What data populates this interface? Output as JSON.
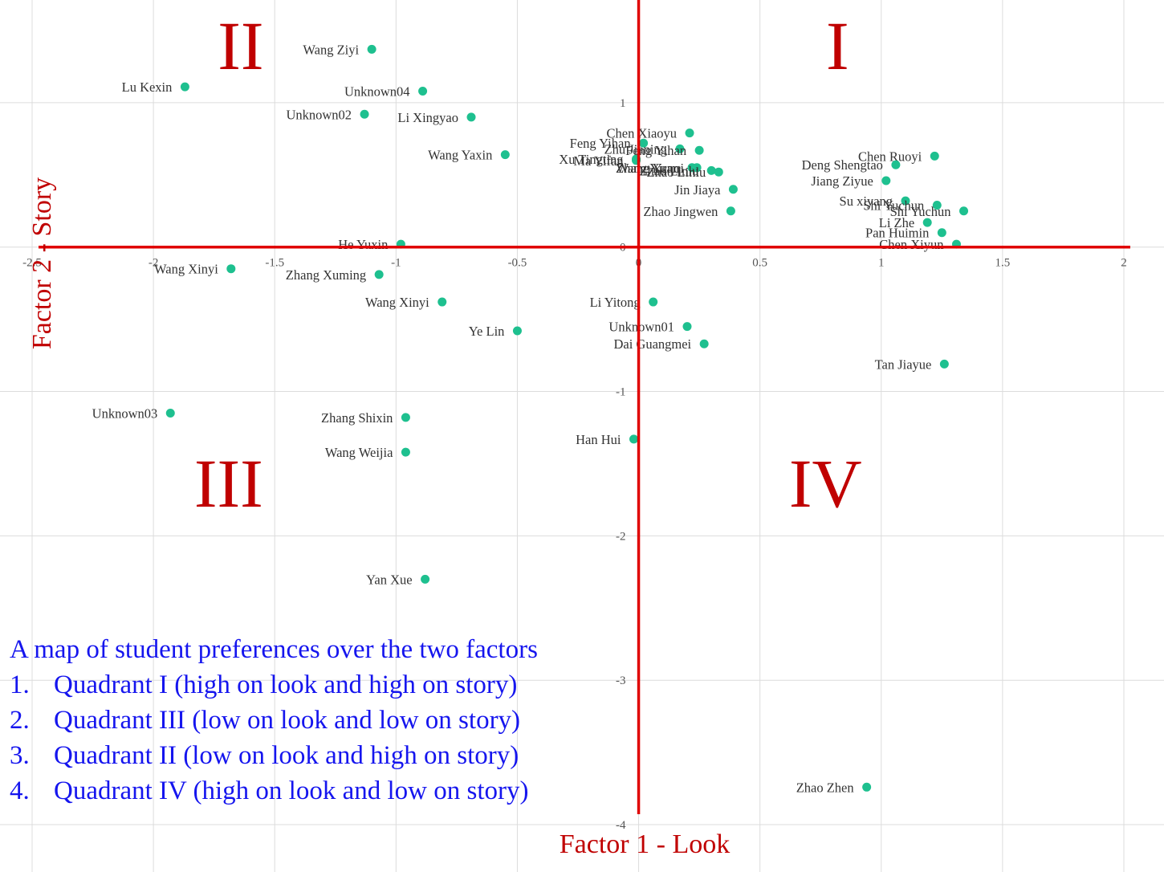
{
  "chart_data": {
    "type": "scatter",
    "title": "",
    "xlabel": "Factor 1 - Look",
    "ylabel": "Factor 2 - Story",
    "xlim": [
      -2.5,
      2.0
    ],
    "ylim": [
      -4.35,
      1.75
    ],
    "grid": true,
    "x_ticks": [
      -2.5,
      -2,
      -1.5,
      -1,
      -0.5,
      0,
      0.5,
      1,
      1.5,
      2
    ],
    "x_tick_labels": [
      "-2.5",
      "-2",
      "-1.5",
      "-1",
      "-0.5",
      "0",
      "0.5",
      "1",
      "1.5",
      "2"
    ],
    "y_ticks": [
      1,
      0,
      -1,
      -2,
      -3,
      -4
    ],
    "y_tick_labels": [
      "1",
      "0",
      "-1",
      "-2",
      "-3",
      "-4"
    ],
    "point_color": "#1ec08f",
    "axis_color": "#e00000",
    "quadrant_labels": [
      {
        "text": "I",
        "x": 0.82,
        "y": 1.4
      },
      {
        "text": "II",
        "x": -1.64,
        "y": 1.4
      },
      {
        "text": "III",
        "x": -1.69,
        "y": -1.63
      },
      {
        "text": "IV",
        "x": 0.77,
        "y": -1.63
      }
    ],
    "points": [
      {
        "name": "Wang Ziyi",
        "x": -1.1,
        "y": 1.37
      },
      {
        "name": "Lu Kexin",
        "x": -1.87,
        "y": 1.11
      },
      {
        "name": "Unknown04",
        "x": -0.89,
        "y": 1.08
      },
      {
        "name": "Unknown02",
        "x": -1.13,
        "y": 0.92
      },
      {
        "name": "Li Xingyao",
        "x": -0.69,
        "y": 0.9
      },
      {
        "name": "Wang Yaxin",
        "x": -0.55,
        "y": 0.64
      },
      {
        "name": "Feng Yihan",
        "x": 0.02,
        "y": 0.72
      },
      {
        "name": "Chen Xiaoyu",
        "x": 0.21,
        "y": 0.79
      },
      {
        "name": "Xu Tingting",
        "x": -0.01,
        "y": 0.61
      },
      {
        "name": "Zhu Jianing",
        "x": 0.17,
        "y": 0.68
      },
      {
        "name": "Feng Yihan",
        "x": 0.25,
        "y": 0.67
      },
      {
        "name": "Ma Yifan",
        "x": -0.01,
        "y": 0.6
      },
      {
        "name": "Wang Yiran",
        "x": 0.22,
        "y": 0.55
      },
      {
        "name": "Zhang Yunqi",
        "x": 0.24,
        "y": 0.55
      },
      {
        "name": "Zhao Linlu",
        "x": 0.3,
        "y": 0.53
      },
      {
        "name": "Zhao Linlu",
        "x": 0.33,
        "y": 0.52
      },
      {
        "name": "Jin Jiaya",
        "x": 0.39,
        "y": 0.4
      },
      {
        "name": "Zhao Jingwen",
        "x": 0.38,
        "y": 0.25
      },
      {
        "name": "Chen Ruoyi",
        "x": 1.22,
        "y": 0.63
      },
      {
        "name": "Deng Shengtao",
        "x": 1.06,
        "y": 0.57
      },
      {
        "name": "Jiang Ziyue",
        "x": 1.02,
        "y": 0.46
      },
      {
        "name": "Su xiyang",
        "x": 1.1,
        "y": 0.32
      },
      {
        "name": "Shi Yuchun",
        "x": 1.23,
        "y": 0.29
      },
      {
        "name": "Shi Yuchun",
        "x": 1.34,
        "y": 0.25
      },
      {
        "name": "Li Zhe",
        "x": 1.19,
        "y": 0.17
      },
      {
        "name": "Pan Huimin",
        "x": 1.25,
        "y": 0.1
      },
      {
        "name": "Chen Xiyun",
        "x": 1.31,
        "y": 0.02
      },
      {
        "name": "He Yuxin",
        "x": -0.98,
        "y": 0.02
      },
      {
        "name": "Wang Xinyi",
        "x": -1.68,
        "y": -0.15
      },
      {
        "name": "Zhang Xuming",
        "x": -1.07,
        "y": -0.19
      },
      {
        "name": "Wang Xinyi",
        "x": -0.81,
        "y": -0.38
      },
      {
        "name": "Li Yitong",
        "x": 0.06,
        "y": -0.38
      },
      {
        "name": "Ye Lin",
        "x": -0.5,
        "y": -0.58
      },
      {
        "name": "Unknown01",
        "x": 0.2,
        "y": -0.55
      },
      {
        "name": "Dai Guangmei",
        "x": 0.27,
        "y": -0.67
      },
      {
        "name": "Tan Jiayue",
        "x": 1.26,
        "y": -0.81
      },
      {
        "name": "Unknown03",
        "x": -1.93,
        "y": -1.15
      },
      {
        "name": "Zhang Shixin",
        "x": -0.96,
        "y": -1.18
      },
      {
        "name": "Wang Weijia",
        "x": -0.96,
        "y": -1.42
      },
      {
        "name": "Han Hui",
        "x": -0.02,
        "y": -1.33
      },
      {
        "name": "Yan Xue",
        "x": -0.88,
        "y": -2.3
      },
      {
        "name": "Zhao Zhen",
        "x": 0.94,
        "y": -3.74
      }
    ]
  },
  "notes": {
    "title": "A map of student preferences over the two factors",
    "items": [
      {
        "num": "1.",
        "text": "Quadrant I (high on look and high on story)"
      },
      {
        "num": "2.",
        "text": "Quadrant III (low on look and low on story)"
      },
      {
        "num": "3.",
        "text": "Quadrant II (low on look and high on story)"
      },
      {
        "num": "4.",
        "text": "Quadrant IV (high on look and low on story)"
      }
    ]
  }
}
